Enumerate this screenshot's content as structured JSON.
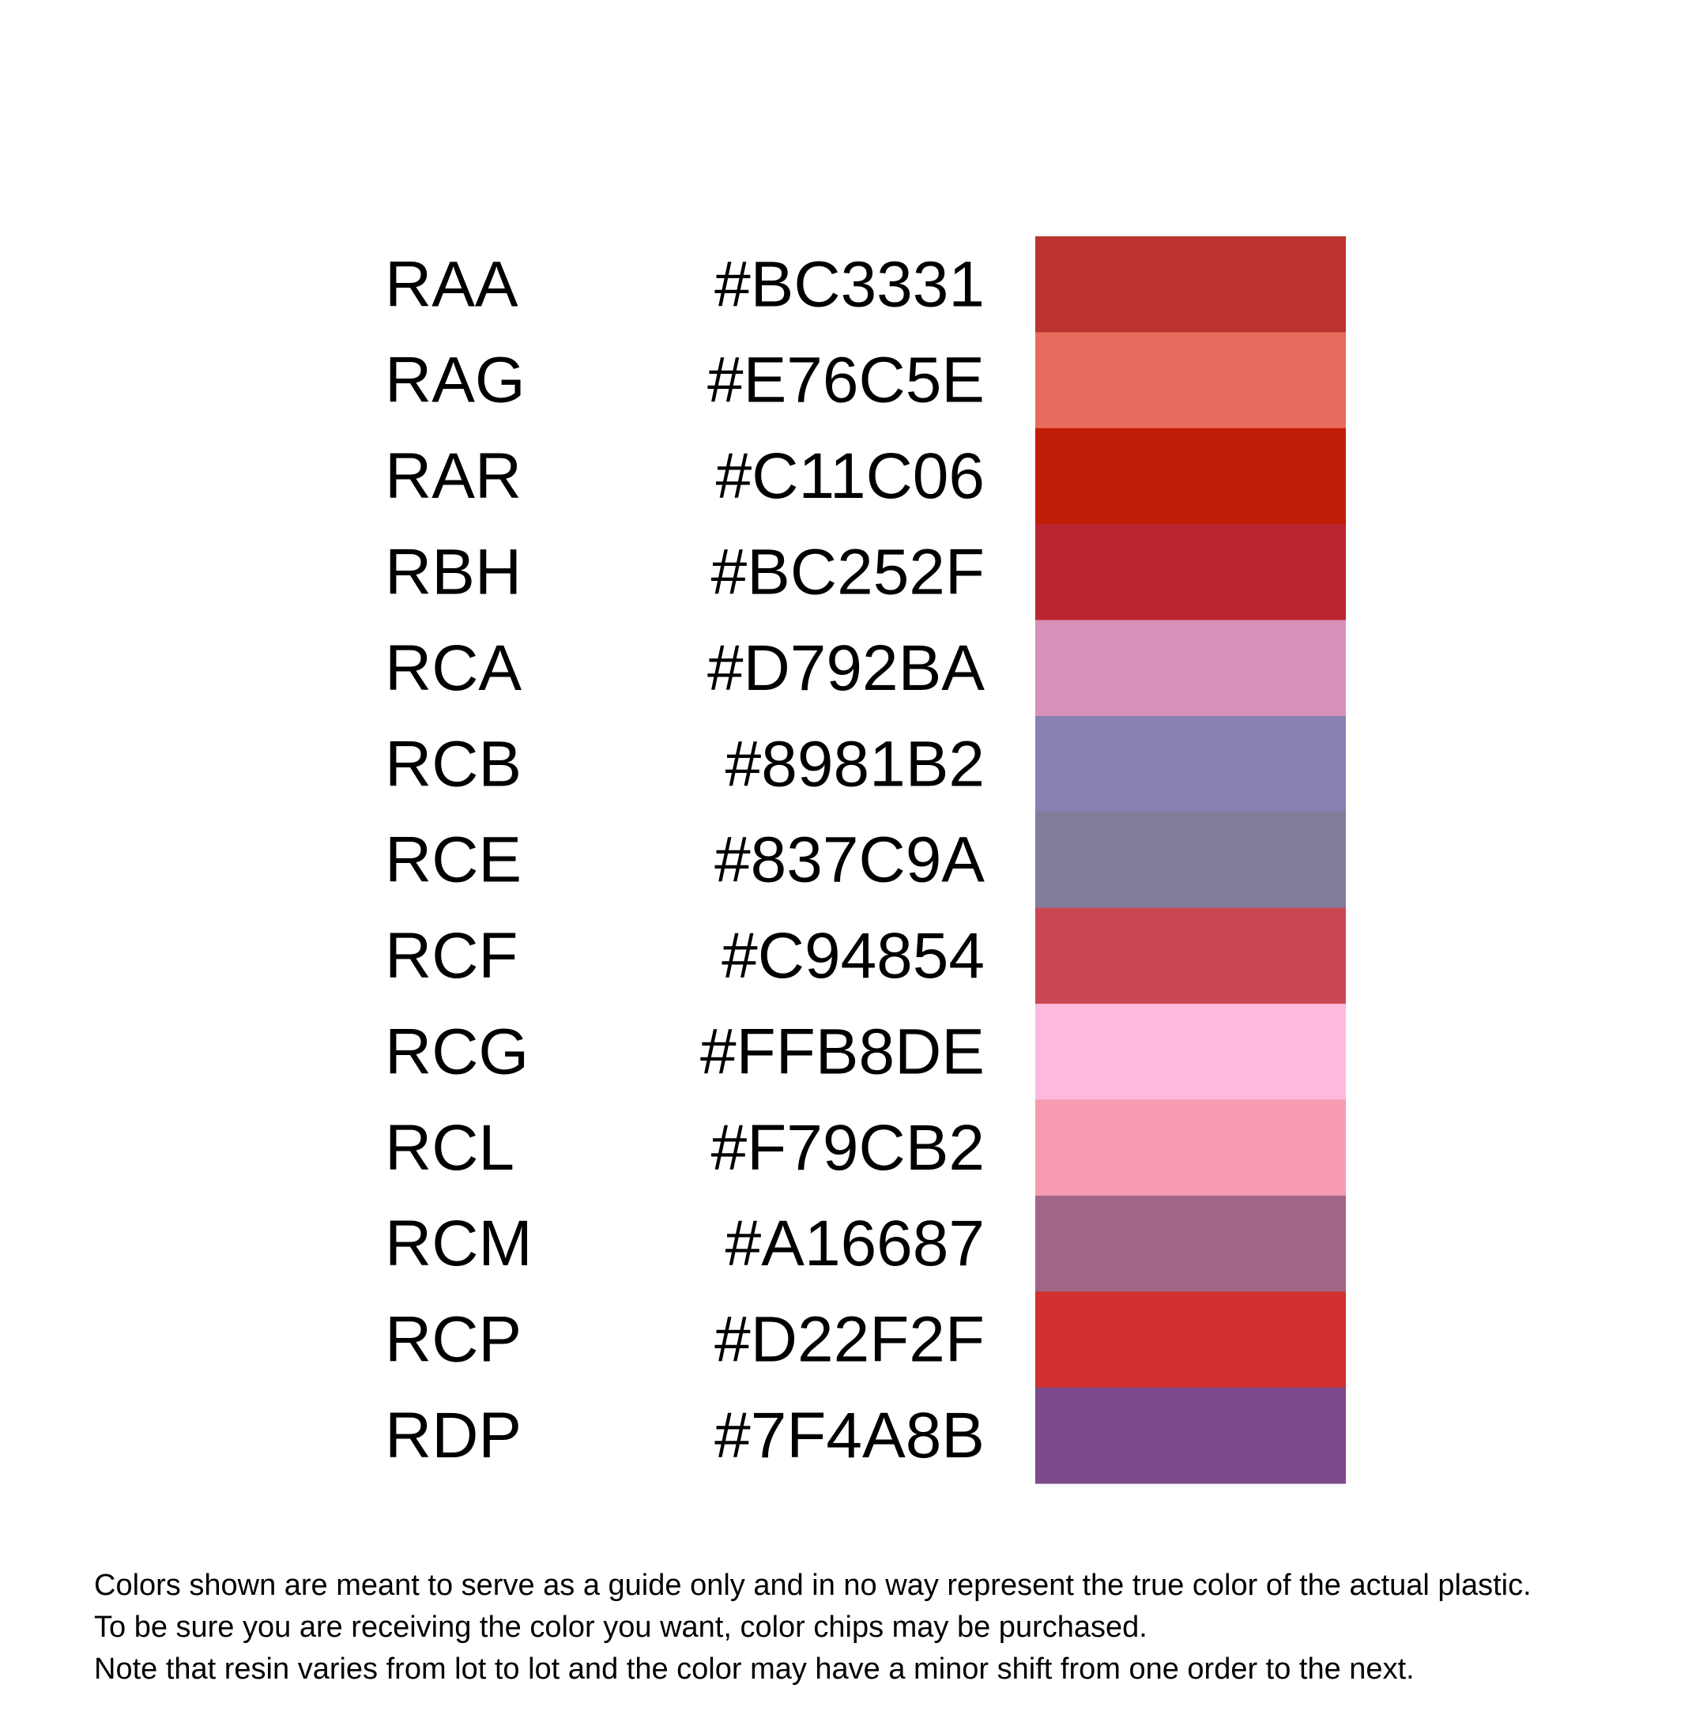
{
  "rows": [
    {
      "name": "RAA",
      "hex": "#BC3331"
    },
    {
      "name": "RAG",
      "hex": "#E76C5E"
    },
    {
      "name": "RAR",
      "hex": "#C11C06"
    },
    {
      "name": "RBH",
      "hex": "#BC252F"
    },
    {
      "name": "RCA",
      "hex": "#D792BA"
    },
    {
      "name": "RCB",
      "hex": "#8981B2"
    },
    {
      "name": "RCE",
      "hex": "#837C9A"
    },
    {
      "name": "RCF",
      "hex": "#C94854"
    },
    {
      "name": "RCG",
      "hex": "#FFB8DE"
    },
    {
      "name": "RCL",
      "hex": "#F79CB2"
    },
    {
      "name": "RCM",
      "hex": "#A16687"
    },
    {
      "name": "RCP",
      "hex": "#D22F2F"
    },
    {
      "name": "RDP",
      "hex": "#7F4A8B"
    }
  ],
  "footer": [
    "Colors shown are meant to serve as a guide only and in no way represent the true color of the actual plastic.",
    "To be sure you are receiving the color you want, color chips may be purchased.",
    "Note that resin varies from lot to lot and the color may have a minor shift from one order to the next."
  ]
}
